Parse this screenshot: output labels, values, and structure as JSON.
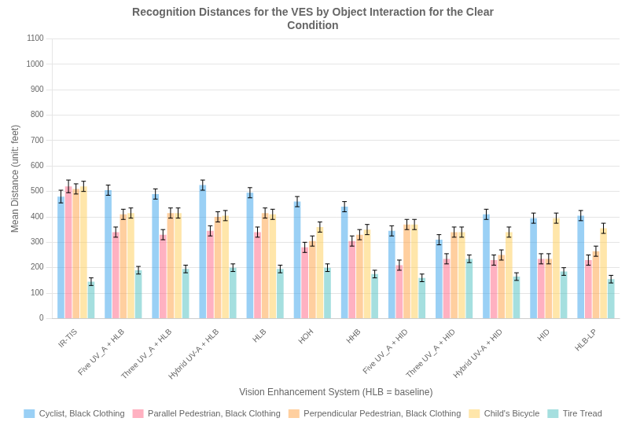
{
  "chart_data": {
    "type": "bar",
    "title": "Recognition Distances for the VES by Object Interaction for the Clear\nCondition",
    "xlabel": "Vision Enhancement System (HLB = baseline)",
    "ylabel": "Mean Distance (unit: feet)",
    "categories": [
      "IR-TIS",
      "Five UV_A + HLB",
      "Three UV_A + HLB",
      "Hybrid UV-A + HLB",
      "HLB",
      "HOH",
      "HHB",
      "Five UV_A + HID",
      "Three UV_A + HID",
      "Hybrid UV-A + HID",
      "HID",
      "HLB-LP"
    ],
    "series": [
      {
        "name": "Cyclist, Black Clothing",
        "values": [
          480,
          505,
          490,
          525,
          495,
          460,
          440,
          345,
          310,
          410,
          395,
          405
        ],
        "errors": [
          25,
          20,
          20,
          20,
          20,
          20,
          20,
          20,
          20,
          20,
          20,
          20
        ]
      },
      {
        "name": "Parallel Pedestrian, Black Clothing",
        "values": [
          520,
          340,
          330,
          345,
          340,
          280,
          305,
          210,
          235,
          230,
          235,
          230
        ],
        "errors": [
          25,
          20,
          20,
          20,
          20,
          20,
          20,
          20,
          20,
          20,
          20,
          20
        ]
      },
      {
        "name": "Perpendicular Pedestrian, Black Clothing",
        "values": [
          510,
          410,
          415,
          400,
          415,
          305,
          330,
          370,
          340,
          250,
          235,
          265
        ],
        "errors": [
          20,
          20,
          20,
          20,
          20,
          20,
          20,
          20,
          20,
          20,
          20,
          20
        ]
      },
      {
        "name": "Child's Bicycle",
        "values": [
          520,
          415,
          415,
          405,
          410,
          360,
          350,
          370,
          340,
          340,
          395,
          355
        ],
        "errors": [
          20,
          20,
          20,
          20,
          20,
          20,
          20,
          20,
          20,
          20,
          20,
          20
        ]
      },
      {
        "name": "Tire Tread",
        "values": [
          145,
          190,
          195,
          200,
          195,
          200,
          175,
          160,
          235,
          165,
          185,
          155
        ],
        "errors": [
          15,
          15,
          15,
          15,
          15,
          15,
          15,
          15,
          15,
          15,
          15,
          15
        ]
      }
    ],
    "ylim": [
      0,
      1100
    ],
    "yticks": [
      0,
      100,
      200,
      300,
      400,
      500,
      600,
      700,
      800,
      900,
      1000,
      1100
    ],
    "grid": true,
    "legend": "bottom"
  }
}
